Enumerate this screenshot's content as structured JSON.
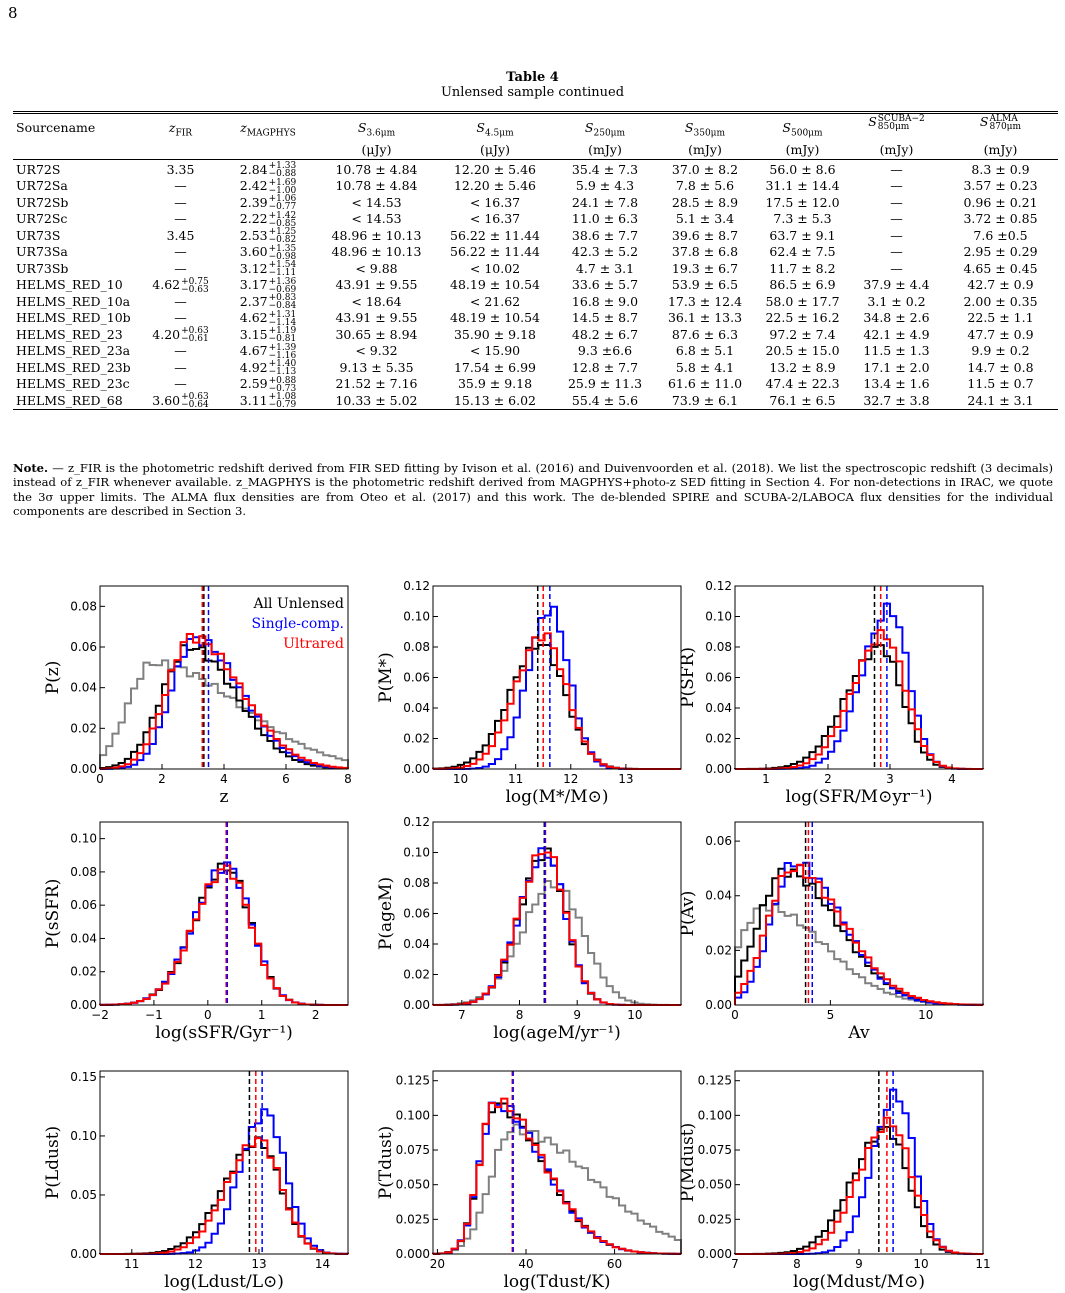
{
  "page_number": "8",
  "table": {
    "title": "Table 4",
    "subtitle": "Unlensed sample continued",
    "headers": [
      {
        "main": "Sourcename",
        "unit": ""
      },
      {
        "main": "z_FIR",
        "unit": ""
      },
      {
        "main": "z_MAGPHYS",
        "unit": ""
      },
      {
        "main": "S_3.6μm",
        "unit": "(μJy)"
      },
      {
        "main": "S_4.5μm",
        "unit": "(μJy)"
      },
      {
        "main": "S_250μm",
        "unit": "(mJy)"
      },
      {
        "main": "S_350μm",
        "unit": "(mJy)"
      },
      {
        "main": "S_500μm",
        "unit": "(mJy)"
      },
      {
        "main": "S_850μm^SCUBA−2",
        "unit": "(mJy)"
      },
      {
        "main": "S_870μm^ALMA",
        "unit": "(mJy)"
      }
    ],
    "rows": [
      {
        "name": "UR72S",
        "zfir": "3.35",
        "zmag": {
          "v": "2.84",
          "up": "+1.33",
          "lo": "−0.88"
        },
        "s36": "10.78 ± 4.84",
        "s45": "12.20 ± 5.46",
        "s250": "35.4 ± 7.3",
        "s350": "37.0 ± 8.2",
        "s500": "56.0 ± 8.6",
        "s850": "—",
        "s870": "8.3 ± 0.9"
      },
      {
        "name": "UR72Sa",
        "zfir": "—",
        "zmag": {
          "v": "2.42",
          "up": "+1.69",
          "lo": "−1.00"
        },
        "s36": "10.78 ± 4.84",
        "s45": "12.20 ± 5.46",
        "s250": "5.9 ± 4.3",
        "s350": "7.8 ± 5.6",
        "s500": "31.1 ± 14.4",
        "s850": "—",
        "s870": "3.57 ± 0.23"
      },
      {
        "name": "UR72Sb",
        "zfir": "—",
        "zmag": {
          "v": "2.39",
          "up": "+1.06",
          "lo": "−0.77"
        },
        "s36": "< 14.53",
        "s45": "< 16.37",
        "s250": "24.1 ± 7.8",
        "s350": "28.5 ± 8.9",
        "s500": "17.5 ± 12.0",
        "s850": "—",
        "s870": "0.96 ± 0.21"
      },
      {
        "name": "UR72Sc",
        "zfir": "—",
        "zmag": {
          "v": "2.22",
          "up": "+1.42",
          "lo": "−0.85"
        },
        "s36": "< 14.53",
        "s45": "< 16.37",
        "s250": "11.0 ± 6.3",
        "s350": "5.1 ± 3.4",
        "s500": "7.3 ± 5.3",
        "s850": "—",
        "s870": "3.72 ± 0.85"
      },
      {
        "name": "UR73S",
        "zfir": "3.45",
        "zmag": {
          "v": "2.53",
          "up": "+1.25",
          "lo": "−0.82"
        },
        "s36": "48.96 ± 10.13",
        "s45": "56.22 ± 11.44",
        "s250": "38.6 ± 7.7",
        "s350": "39.6 ± 8.7",
        "s500": "63.7 ± 9.1",
        "s850": "—",
        "s870": "7.6 ±0.5"
      },
      {
        "name": "UR73Sa",
        "zfir": "—",
        "zmag": {
          "v": "3.60",
          "up": "+1.35",
          "lo": "−0.98"
        },
        "s36": "48.96 ± 10.13",
        "s45": "56.22 ± 11.44",
        "s250": "42.3 ± 5.2",
        "s350": "37.8 ± 6.8",
        "s500": "62.4 ± 7.5",
        "s850": "—",
        "s870": "2.95 ± 0.29"
      },
      {
        "name": "UR73Sb",
        "zfir": "—",
        "zmag": {
          "v": "3.12",
          "up": "+1.54",
          "lo": "−1.11"
        },
        "s36": "< 9.88",
        "s45": "< 10.02",
        "s250": "4.7 ± 3.1",
        "s350": "19.3 ± 6.7",
        "s500": "11.7 ± 8.2",
        "s850": "—",
        "s870": "4.65 ± 0.45"
      },
      {
        "name": "HELMS_RED_10",
        "zfir": {
          "v": "4.62",
          "up": "+0.75",
          "lo": "−0.63"
        },
        "zmag": {
          "v": "3.17",
          "up": "+1.36",
          "lo": "−0.69"
        },
        "s36": "43.91 ± 9.55",
        "s45": "48.19 ± 10.54",
        "s250": "33.6 ± 5.7",
        "s350": "53.9 ± 6.5",
        "s500": "86.5 ± 6.9",
        "s850": "37.9 ± 4.4",
        "s870": "42.7 ± 0.9"
      },
      {
        "name": "HELMS_RED_10a",
        "zfir": "—",
        "zmag": {
          "v": "2.37",
          "up": "+0.83",
          "lo": "−0.84"
        },
        "s36": "< 18.64",
        "s45": "< 21.62",
        "s250": "16.8 ± 9.0",
        "s350": "17.3 ± 12.4",
        "s500": "58.0 ± 17.7",
        "s850": "3.1 ± 0.2",
        "s870": "2.00 ± 0.35"
      },
      {
        "name": "HELMS_RED_10b",
        "zfir": "—",
        "zmag": {
          "v": "4.62",
          "up": "+1.31",
          "lo": "−1.14"
        },
        "s36": "43.91 ± 9.55",
        "s45": "48.19 ± 10.54",
        "s250": "14.5 ± 8.7",
        "s350": "36.1 ± 13.3",
        "s500": "22.5 ± 16.2",
        "s850": "34.8 ± 2.6",
        "s870": "22.5 ± 1.1"
      },
      {
        "name": "HELMS_RED_23",
        "zfir": {
          "v": "4.20",
          "up": "+0.63",
          "lo": "−0.61"
        },
        "zmag": {
          "v": "3.15",
          "up": "+1.19",
          "lo": "−0.81"
        },
        "s36": "30.65 ± 8.94",
        "s45": "35.90 ± 9.18",
        "s250": "48.2 ± 6.7",
        "s350": "87.6 ± 6.3",
        "s500": "97.2 ± 7.4",
        "s850": "42.1 ± 4.9",
        "s870": "47.7 ± 0.9"
      },
      {
        "name": "HELMS_RED_23a",
        "zfir": "—",
        "zmag": {
          "v": "4.67",
          "up": "+1.39",
          "lo": "−1.16"
        },
        "s36": "< 9.32",
        "s45": "< 15.90",
        "s250": "9.3 ±6.6",
        "s350": "6.8 ± 5.1",
        "s500": "20.5 ± 15.0",
        "s850": "11.5 ± 1.3",
        "s870": "9.9 ± 0.2"
      },
      {
        "name": "HELMS_RED_23b",
        "zfir": "—",
        "zmag": {
          "v": "4.92",
          "up": "+1.40",
          "lo": "−1.13"
        },
        "s36": "9.13 ± 5.35",
        "s45": "17.54 ± 6.99",
        "s250": "12.8 ± 7.7",
        "s350": "5.8 ± 4.1",
        "s500": "13.2 ± 8.9",
        "s850": "17.1 ± 2.0",
        "s870": "14.7 ± 0.8"
      },
      {
        "name": "HELMS_RED_23c",
        "zfir": "—",
        "zmag": {
          "v": "2.59",
          "up": "+0.88",
          "lo": "−0.73"
        },
        "s36": "21.52 ± 7.16",
        "s45": "35.9 ± 9.18",
        "s250": "25.9 ± 11.3",
        "s350": "61.6 ± 11.0",
        "s500": "47.4 ± 22.3",
        "s850": "13.4 ± 1.6",
        "s870": "11.5 ± 0.7"
      },
      {
        "name": "HELMS_RED_68",
        "zfir": {
          "v": "3.60",
          "up": "+0.63",
          "lo": "−0.64"
        },
        "zmag": {
          "v": "3.11",
          "up": "+1.08",
          "lo": "−0.79"
        },
        "s36": "10.33 ± 5.02",
        "s45": "15.13 ± 6.02",
        "s250": "55.4 ± 5.6",
        "s350": "73.9 ± 6.1",
        "s500": "76.1 ± 6.5",
        "s850": "32.7 ± 3.8",
        "s870": "24.1 ± 3.1"
      }
    ]
  },
  "note": {
    "label": "Note.",
    "text": " — z_FIR is the photometric redshift derived from FIR SED fitting by Ivison et al. (2016) and Duivenvoorden et al. (2018). We list the spectroscopic redshift (3 decimals) instead of z_FIR whenever available. z_MAGPHYS is the photometric redshift derived from MAGPHYS+photo-z SED fitting in Section 4. For non-detections in IRAC, we quote the 3σ upper limits. The ALMA flux densities are from Oteo et al. (2017) and this work. The de-blended SPIRE and SCUBA-2/LABOCA flux densities for the individual components are described in Section 3."
  },
  "colors": {
    "all": "#000000",
    "single": "#0000ff",
    "ultrared": "#ff0000",
    "gray": "#808080"
  },
  "chart_data": [
    {
      "type": "line",
      "id": "z",
      "xlabel": "z",
      "ylabel": "P(z)",
      "xlim": [
        0,
        8
      ],
      "ylim": [
        0,
        0.09
      ],
      "xticks": [
        0,
        2,
        4,
        6,
        8
      ],
      "xticklabels": [
        "0",
        "2",
        "4",
        "6",
        "8"
      ],
      "yticks": [
        0,
        0.02,
        0.04,
        0.06,
        0.08
      ],
      "yticklabels": [
        "0.00",
        "0.02",
        "0.04",
        "0.06",
        "0.08"
      ],
      "legend": [
        "All Unlensed",
        "Single-comp.",
        "Ultrared"
      ],
      "legend_loc": "top-right",
      "dist": {
        "all": {
          "mu": 2.9,
          "sl": 0.9,
          "sr": 1.5,
          "peak": 0.06
        },
        "single": {
          "mu": 3.05,
          "sl": 0.75,
          "sr": 1.5,
          "peak": 0.064
        },
        "ultrared": {
          "mu": 2.95,
          "sl": 0.8,
          "sr": 1.6,
          "peak": 0.065
        },
        "gray": {
          "mu": 1.7,
          "sl": 0.8,
          "sr": 2.8,
          "peak": 0.052
        }
      },
      "medians": {
        "all": 3.35,
        "single": 3.5,
        "ultrared": 3.3
      }
    },
    {
      "type": "line",
      "id": "mstar",
      "xlabel": "log(M*/M⊙)",
      "ylabel": "P(M*)",
      "xlim": [
        9.5,
        14
      ],
      "ylim": [
        0,
        0.12
      ],
      "xticks": [
        10,
        11,
        12,
        13
      ],
      "xticklabels": [
        "10",
        "11",
        "12",
        "13"
      ],
      "yticks": [
        0,
        0.02,
        0.04,
        0.06,
        0.08,
        0.1,
        0.12
      ],
      "yticklabels": [
        "0.00",
        "0.02",
        "0.04",
        "0.06",
        "0.08",
        "0.10",
        "0.12"
      ],
      "dist": {
        "all": {
          "mu": 11.45,
          "sl": 0.55,
          "sr": 0.45,
          "peak": 0.082
        },
        "single": {
          "mu": 11.62,
          "sl": 0.4,
          "sr": 0.35,
          "peak": 0.105
        },
        "ultrared": {
          "mu": 11.5,
          "sl": 0.5,
          "sr": 0.42,
          "peak": 0.088
        }
      },
      "medians": {
        "all": 11.4,
        "single": 11.62,
        "ultrared": 11.5
      }
    },
    {
      "type": "line",
      "id": "sfr",
      "xlabel": "log(SFR/M⊙yr⁻¹)",
      "ylabel": "P(SFR)",
      "xlim": [
        0.5,
        4.5
      ],
      "ylim": [
        0,
        0.12
      ],
      "xticks": [
        1,
        2,
        3,
        4
      ],
      "xticklabels": [
        "1",
        "2",
        "3",
        "4"
      ],
      "yticks": [
        0,
        0.02,
        0.04,
        0.06,
        0.08,
        0.1,
        0.12
      ],
      "yticklabels": [
        "0.00",
        "0.02",
        "0.04",
        "0.06",
        "0.08",
        "0.10",
        "0.12"
      ],
      "dist": {
        "all": {
          "mu": 2.85,
          "sl": 0.55,
          "sr": 0.35,
          "peak": 0.08
        },
        "single": {
          "mu": 3.0,
          "sl": 0.45,
          "sr": 0.3,
          "peak": 0.105
        },
        "ultrared": {
          "mu": 2.9,
          "sl": 0.5,
          "sr": 0.35,
          "peak": 0.088
        }
      },
      "medians": {
        "all": 2.75,
        "single": 2.95,
        "ultrared": 2.85
      }
    },
    {
      "type": "line",
      "id": "ssfr",
      "xlabel": "log(sSFR/Gyr⁻¹)",
      "ylabel": "P(sSFR)",
      "xlim": [
        -2,
        2.6
      ],
      "ylim": [
        0,
        0.11
      ],
      "xticks": [
        -2,
        -1,
        0,
        1,
        2
      ],
      "xticklabels": [
        "−2",
        "−1",
        "0",
        "1",
        "2"
      ],
      "yticks": [
        0,
        0.02,
        0.04,
        0.06,
        0.08,
        0.1
      ],
      "yticklabels": [
        "0.00",
        "0.02",
        "0.04",
        "0.06",
        "0.08",
        "0.10"
      ],
      "dist": {
        "all": {
          "mu": 0.35,
          "sl": 0.6,
          "sr": 0.45,
          "peak": 0.083
        },
        "single": {
          "mu": 0.35,
          "sl": 0.6,
          "sr": 0.45,
          "peak": 0.084
        },
        "ultrared": {
          "mu": 0.35,
          "sl": 0.6,
          "sr": 0.45,
          "peak": 0.082
        }
      },
      "medians": {
        "all": 0.35,
        "single": 0.36,
        "ultrared": 0.34
      }
    },
    {
      "type": "line",
      "id": "age",
      "xlabel": "log(ageM/yr⁻¹)",
      "ylabel": "P(ageM)",
      "xlim": [
        6.5,
        10.8
      ],
      "ylim": [
        0,
        0.12
      ],
      "xticks": [
        7,
        8,
        9,
        10
      ],
      "xticklabels": [
        "7",
        "8",
        "9",
        "10"
      ],
      "yticks": [
        0,
        0.02,
        0.04,
        0.06,
        0.08,
        0.1,
        0.12
      ],
      "yticklabels": [
        "0.00",
        "0.02",
        "0.04",
        "0.06",
        "0.08",
        "0.10",
        "0.12"
      ],
      "dist": {
        "all": {
          "mu": 8.45,
          "sl": 0.45,
          "sr": 0.35,
          "peak": 0.1
        },
        "single": {
          "mu": 8.45,
          "sl": 0.45,
          "sr": 0.35,
          "peak": 0.1
        },
        "ultrared": {
          "mu": 8.45,
          "sl": 0.45,
          "sr": 0.35,
          "peak": 0.102
        },
        "gray": {
          "mu": 8.6,
          "sl": 0.55,
          "sr": 0.5,
          "peak": 0.08
        }
      },
      "medians": {
        "all": 8.43,
        "single": 8.44,
        "ultrared": 8.45
      }
    },
    {
      "type": "line",
      "id": "av",
      "xlabel": "Av",
      "ylabel": "P(Av)",
      "xlim": [
        0,
        13
      ],
      "ylim": [
        0,
        0.067
      ],
      "xticks": [
        0,
        5,
        10
      ],
      "xticklabels": [
        "0",
        "5",
        "10"
      ],
      "yticks": [
        0,
        0.02,
        0.04,
        0.06
      ],
      "yticklabels": [
        "0.00",
        "0.02",
        "0.04",
        "0.06"
      ],
      "dist": {
        "all": {
          "mu": 2.6,
          "sl": 1.4,
          "sr": 2.8,
          "peak": 0.049
        },
        "single": {
          "mu": 3.1,
          "sl": 1.2,
          "sr": 2.5,
          "peak": 0.052
        },
        "ultrared": {
          "mu": 3.0,
          "sl": 1.3,
          "sr": 2.7,
          "peak": 0.05
        },
        "gray": {
          "mu": 1.5,
          "sl": 1.3,
          "sr": 3.2,
          "peak": 0.036
        }
      },
      "medians": {
        "all": 3.7,
        "single": 4.05,
        "ultrared": 3.85
      }
    },
    {
      "type": "line",
      "id": "ldust",
      "xlabel": "log(Ldust/L⊙)",
      "ylabel": "P(Ldust)",
      "xlim": [
        10.5,
        14.4
      ],
      "ylim": [
        0,
        0.155
      ],
      "xticks": [
        11,
        12,
        13,
        14
      ],
      "xticklabels": [
        "11",
        "12",
        "13",
        "14"
      ],
      "yticks": [
        0,
        0.05,
        0.1,
        0.15
      ],
      "yticklabels": [
        "0.00",
        "0.05",
        "0.10",
        "0.15"
      ],
      "dist": {
        "all": {
          "mu": 13.0,
          "sl": 0.55,
          "sr": 0.35,
          "peak": 0.095
        },
        "single": {
          "mu": 13.1,
          "sl": 0.4,
          "sr": 0.32,
          "peak": 0.12
        },
        "ultrared": {
          "mu": 13.0,
          "sl": 0.5,
          "sr": 0.35,
          "peak": 0.097
        }
      },
      "medians": {
        "all": 12.85,
        "single": 13.05,
        "ultrared": 12.95
      }
    },
    {
      "type": "line",
      "id": "tdust",
      "xlabel": "log(Tdust/K)",
      "ylabel": "P(Tdust)",
      "xlim": [
        19,
        75
      ],
      "ylim": [
        0,
        0.132
      ],
      "xticks": [
        20,
        40,
        60
      ],
      "xticklabels": [
        "20",
        "40",
        "60"
      ],
      "yticks": [
        0,
        0.025,
        0.05,
        0.075,
        0.1,
        0.125
      ],
      "yticklabels": [
        "0.000",
        "0.025",
        "0.050",
        "0.075",
        "0.100",
        "0.125"
      ],
      "dist": {
        "all": {
          "mu": 33,
          "sl": 3.5,
          "sr": 11,
          "peak": 0.108
        },
        "single": {
          "mu": 33,
          "sl": 3.5,
          "sr": 11,
          "peak": 0.108
        },
        "ultrared": {
          "mu": 33,
          "sl": 3.5,
          "sr": 11,
          "peak": 0.11
        },
        "gray": {
          "mu": 37,
          "sl": 5,
          "sr": 18,
          "peak": 0.09
        }
      },
      "medians": {
        "all": 37.0,
        "single": 37.1,
        "ultrared": 36.9
      }
    },
    {
      "type": "line",
      "id": "mdust",
      "xlabel": "log(Mdust/M⊙)",
      "ylabel": "P(Mdust)",
      "xlim": [
        7,
        11
      ],
      "ylim": [
        0,
        0.132
      ],
      "xticks": [
        7,
        8,
        9,
        10,
        11
      ],
      "xticklabels": [
        "7",
        "8",
        "9",
        "10",
        "11"
      ],
      "yticks": [
        0,
        0.025,
        0.05,
        0.075,
        0.1,
        0.125
      ],
      "yticklabels": [
        "0.000",
        "0.025",
        "0.050",
        "0.075",
        "0.100",
        "0.125"
      ],
      "dist": {
        "all": {
          "mu": 9.45,
          "sl": 0.55,
          "sr": 0.35,
          "peak": 0.09
        },
        "single": {
          "mu": 9.6,
          "sl": 0.38,
          "sr": 0.3,
          "peak": 0.115
        },
        "ultrared": {
          "mu": 9.5,
          "sl": 0.5,
          "sr": 0.35,
          "peak": 0.095
        }
      },
      "medians": {
        "all": 9.32,
        "single": 9.55,
        "ultrared": 9.45
      }
    }
  ]
}
